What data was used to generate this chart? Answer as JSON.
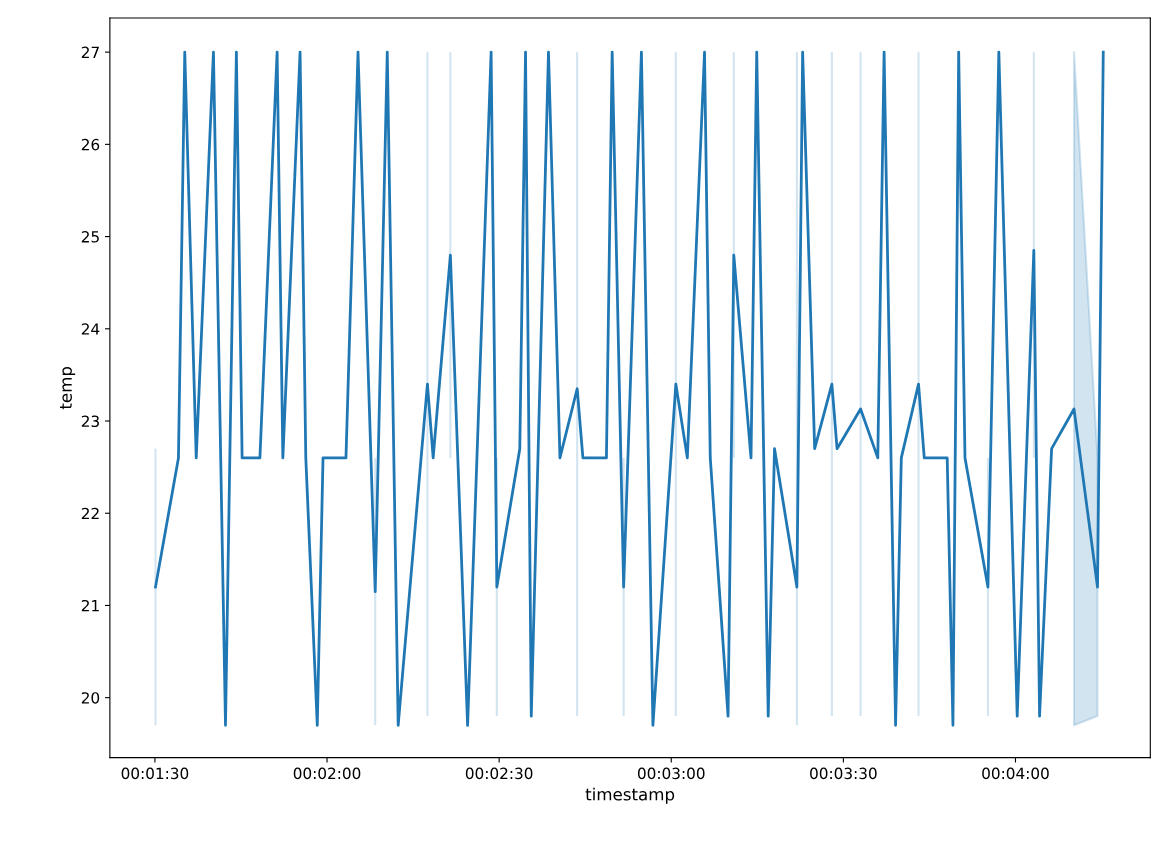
{
  "chart_data": {
    "type": "line",
    "xlabel": "timestamp",
    "ylabel": "temp",
    "x": [
      90.1,
      94.1,
      95.2,
      97.2,
      100.2,
      102.3,
      104.2,
      105.2,
      108.3,
      111.3,
      112.3,
      115.3,
      116.3,
      118.3,
      119.3,
      123.3,
      125.4,
      128.4,
      130.5,
      132.4,
      137.5,
      138.5,
      141.5,
      144.5,
      148.6,
      149.6,
      153.6,
      154.6,
      155.6,
      158.6,
      160.6,
      163.6,
      164.6,
      168.7,
      169.7,
      171.7,
      174.8,
      176.8,
      180.8,
      182.8,
      185.8,
      186.8,
      189.9,
      190.9,
      193.9,
      194.9,
      196.9,
      198.0,
      201.9,
      202.9,
      205.0,
      208.0,
      208.9,
      213.0,
      216.0,
      217.1,
      219.1,
      220.1,
      223.1,
      224.1,
      228.1,
      229.1,
      230.1,
      231.2,
      235.2,
      237.1,
      240.3,
      243.2,
      244.2,
      246.3,
      250.2,
      254.3,
      255.3
    ],
    "series": [
      {
        "color": "#1f77b4",
        "values": [
          21.2,
          22.6,
          27,
          22.6,
          27,
          19.7,
          27,
          22.6,
          22.6,
          27,
          22.6,
          27,
          22.6,
          19.7,
          22.6,
          22.6,
          27,
          21.15,
          27,
          19.7,
          23.4,
          22.6,
          24.8,
          19.7,
          27,
          21.2,
          22.7,
          27,
          19.8,
          27,
          22.6,
          23.35,
          22.6,
          22.6,
          27,
          21.2,
          27,
          19.7,
          23.4,
          22.6,
          27,
          22.6,
          19.8,
          24.8,
          22.6,
          27,
          19.8,
          22.7,
          21.2,
          27,
          22.7,
          23.4,
          22.7,
          23.13,
          22.6,
          27,
          19.7,
          22.6,
          23.4,
          22.6,
          22.6,
          19.7,
          27,
          22.6,
          21.2,
          27,
          19.8,
          24.85,
          19.8,
          22.7,
          23.13,
          21.2,
          27
        ],
        "errors": [
          [
            19.7,
            22.7
          ],
          null,
          null,
          null,
          null,
          null,
          null,
          null,
          null,
          null,
          null,
          null,
          null,
          null,
          null,
          null,
          null,
          [
            19.7,
            22.6
          ],
          null,
          null,
          [
            19.8,
            27
          ],
          null,
          [
            22.6,
            27
          ],
          null,
          null,
          [
            19.8,
            22.6
          ],
          null,
          null,
          null,
          null,
          null,
          [
            19.8,
            27
          ],
          null,
          null,
          null,
          [
            19.8,
            22.6
          ],
          null,
          null,
          [
            19.8,
            27
          ],
          null,
          null,
          null,
          null,
          [
            22.6,
            27
          ],
          null,
          null,
          null,
          null,
          [
            19.7,
            27
          ],
          null,
          null,
          [
            19.8,
            27
          ],
          null,
          [
            19.8,
            27
          ],
          null,
          null,
          null,
          null,
          [
            19.8,
            27
          ],
          null,
          null,
          null,
          null,
          null,
          [
            19.8,
            22.6
          ],
          null,
          null,
          [
            22.6,
            27
          ],
          null,
          null,
          null,
          null,
          null
        ],
        "lower": [
          null,
          null,
          null,
          null,
          null,
          null,
          null,
          null,
          null,
          null,
          null,
          null,
          null,
          null,
          null,
          null,
          null,
          null,
          null,
          null,
          null,
          null,
          null,
          null,
          null,
          null,
          null,
          null,
          null,
          null,
          null,
          null,
          null,
          null,
          null,
          null,
          null,
          null,
          null,
          null,
          null,
          null,
          null,
          null,
          null,
          null,
          null,
          null,
          null,
          null,
          null,
          null,
          null,
          null,
          null,
          null,
          null,
          null,
          null,
          null,
          null,
          null,
          null,
          null,
          null,
          null,
          null,
          null,
          null,
          null,
          19.7,
          19.8,
          null
        ],
        "upper": [
          null,
          null,
          null,
          null,
          null,
          null,
          null,
          null,
          null,
          null,
          null,
          null,
          null,
          null,
          null,
          null,
          null,
          null,
          null,
          null,
          null,
          null,
          null,
          null,
          null,
          null,
          null,
          null,
          null,
          null,
          null,
          null,
          null,
          null,
          null,
          null,
          null,
          null,
          null,
          null,
          null,
          null,
          null,
          null,
          null,
          null,
          null,
          null,
          null,
          null,
          null,
          null,
          null,
          null,
          null,
          null,
          null,
          null,
          null,
          null,
          null,
          null,
          null,
          null,
          null,
          null,
          null,
          null,
          null,
          null,
          27,
          22.6,
          null
        ]
      }
    ],
    "xlim": [
      82.15,
      263.5
    ],
    "xticks": [
      {
        "value": 90,
        "label": "00:01:30"
      },
      {
        "value": 120,
        "label": "00:02:00"
      },
      {
        "value": 150,
        "label": "00:02:30"
      },
      {
        "value": 180,
        "label": "00:03:00"
      },
      {
        "value": 210,
        "label": "00:03:30"
      },
      {
        "value": 240,
        "label": "00:04:00"
      }
    ],
    "ylim": [
      19.35,
      27.37
    ],
    "yticks": [
      20,
      21,
      22,
      23,
      24,
      25,
      26,
      27
    ]
  }
}
